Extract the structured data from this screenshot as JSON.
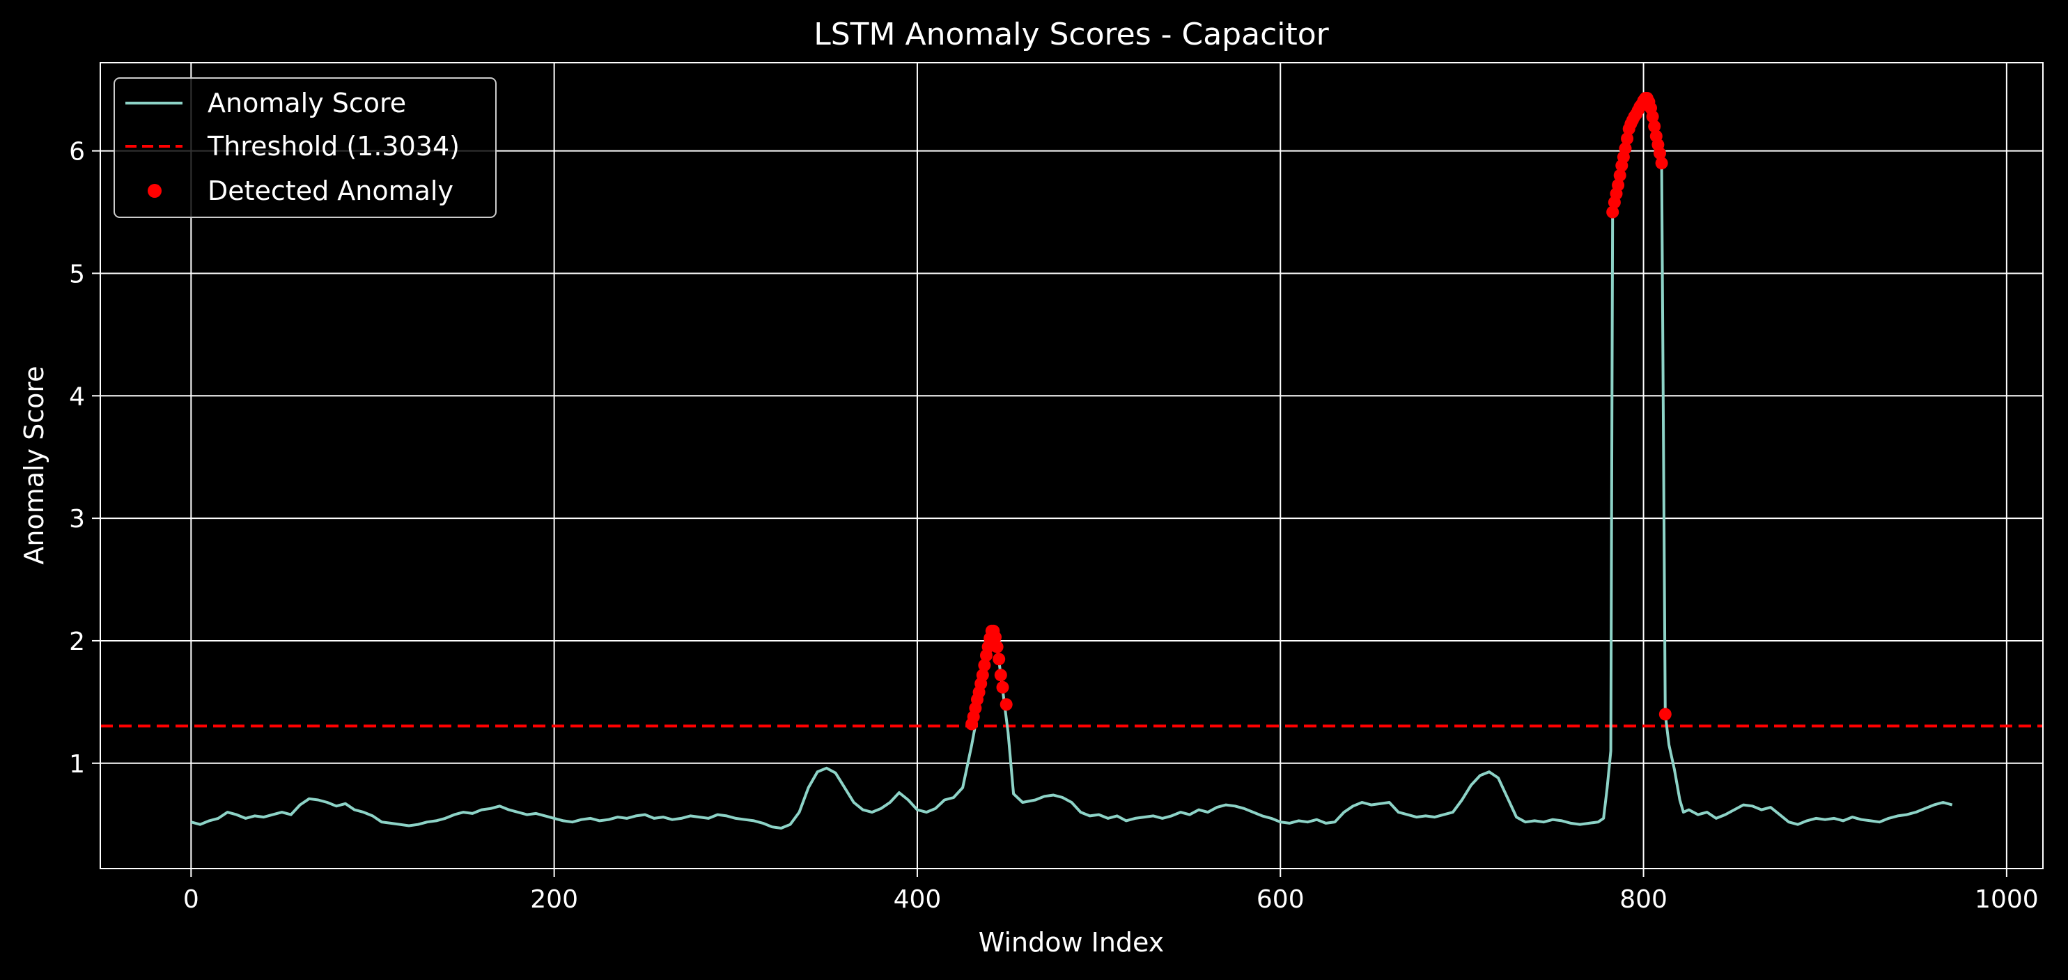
{
  "chart_data": {
    "type": "line",
    "title": "LSTM Anomaly Scores - Capacitor",
    "xlabel": "Window Index",
    "ylabel": "Anomaly Score",
    "xlim": [
      -50,
      1020
    ],
    "ylim": [
      0.14,
      6.72
    ],
    "xticks": [
      0,
      200,
      400,
      600,
      800,
      1000
    ],
    "yticks": [
      1,
      2,
      3,
      4,
      5,
      6
    ],
    "grid": true,
    "legend_position": "top-left",
    "colors": {
      "background": "#000000",
      "score_line": "#8dd3c7",
      "threshold": "#ff0000",
      "anomaly_points": "#ff0000",
      "grid": "#ffffff",
      "axes": "#ffffff"
    },
    "threshold": {
      "name": "Threshold (1.3034)",
      "value": 1.3034,
      "style": "dashed"
    },
    "series": [
      {
        "name": "Anomaly Score",
        "type": "line",
        "points": [
          [
            0,
            0.52
          ],
          [
            5,
            0.5
          ],
          [
            10,
            0.53
          ],
          [
            15,
            0.55
          ],
          [
            20,
            0.6
          ],
          [
            25,
            0.58
          ],
          [
            30,
            0.55
          ],
          [
            35,
            0.57
          ],
          [
            40,
            0.56
          ],
          [
            45,
            0.58
          ],
          [
            50,
            0.6
          ],
          [
            55,
            0.58
          ],
          [
            60,
            0.66
          ],
          [
            65,
            0.71
          ],
          [
            70,
            0.7
          ],
          [
            75,
            0.68
          ],
          [
            80,
            0.65
          ],
          [
            85,
            0.67
          ],
          [
            90,
            0.62
          ],
          [
            95,
            0.6
          ],
          [
            100,
            0.57
          ],
          [
            105,
            0.52
          ],
          [
            110,
            0.51
          ],
          [
            115,
            0.5
          ],
          [
            120,
            0.49
          ],
          [
            125,
            0.5
          ],
          [
            130,
            0.52
          ],
          [
            135,
            0.53
          ],
          [
            140,
            0.55
          ],
          [
            145,
            0.58
          ],
          [
            150,
            0.6
          ],
          [
            155,
            0.59
          ],
          [
            160,
            0.62
          ],
          [
            165,
            0.63
          ],
          [
            170,
            0.65
          ],
          [
            175,
            0.62
          ],
          [
            180,
            0.6
          ],
          [
            185,
            0.58
          ],
          [
            190,
            0.59
          ],
          [
            195,
            0.57
          ],
          [
            200,
            0.55
          ],
          [
            205,
            0.53
          ],
          [
            210,
            0.52
          ],
          [
            215,
            0.54
          ],
          [
            220,
            0.55
          ],
          [
            225,
            0.53
          ],
          [
            230,
            0.54
          ],
          [
            235,
            0.56
          ],
          [
            240,
            0.55
          ],
          [
            245,
            0.57
          ],
          [
            250,
            0.58
          ],
          [
            255,
            0.55
          ],
          [
            260,
            0.56
          ],
          [
            265,
            0.54
          ],
          [
            270,
            0.55
          ],
          [
            275,
            0.57
          ],
          [
            280,
            0.56
          ],
          [
            285,
            0.55
          ],
          [
            290,
            0.58
          ],
          [
            295,
            0.57
          ],
          [
            300,
            0.55
          ],
          [
            305,
            0.54
          ],
          [
            310,
            0.53
          ],
          [
            315,
            0.51
          ],
          [
            320,
            0.48
          ],
          [
            325,
            0.47
          ],
          [
            330,
            0.5
          ],
          [
            335,
            0.6
          ],
          [
            340,
            0.8
          ],
          [
            345,
            0.93
          ],
          [
            350,
            0.96
          ],
          [
            355,
            0.92
          ],
          [
            360,
            0.8
          ],
          [
            365,
            0.68
          ],
          [
            370,
            0.62
          ],
          [
            375,
            0.6
          ],
          [
            380,
            0.63
          ],
          [
            385,
            0.68
          ],
          [
            390,
            0.76
          ],
          [
            395,
            0.7
          ],
          [
            400,
            0.62
          ],
          [
            405,
            0.6
          ],
          [
            410,
            0.63
          ],
          [
            415,
            0.7
          ],
          [
            420,
            0.72
          ],
          [
            425,
            0.8
          ],
          [
            430,
            1.15
          ],
          [
            435,
            1.55
          ],
          [
            438,
            1.85
          ],
          [
            441,
            2.08
          ],
          [
            444,
            1.95
          ],
          [
            447,
            1.6
          ],
          [
            450,
            1.25
          ],
          [
            453,
            0.75
          ],
          [
            458,
            0.68
          ],
          [
            465,
            0.7
          ],
          [
            470,
            0.73
          ],
          [
            475,
            0.74
          ],
          [
            480,
            0.72
          ],
          [
            485,
            0.68
          ],
          [
            490,
            0.6
          ],
          [
            495,
            0.57
          ],
          [
            500,
            0.58
          ],
          [
            505,
            0.55
          ],
          [
            510,
            0.57
          ],
          [
            515,
            0.53
          ],
          [
            520,
            0.55
          ],
          [
            525,
            0.56
          ],
          [
            530,
            0.57
          ],
          [
            535,
            0.55
          ],
          [
            540,
            0.57
          ],
          [
            545,
            0.6
          ],
          [
            550,
            0.58
          ],
          [
            555,
            0.62
          ],
          [
            560,
            0.6
          ],
          [
            565,
            0.64
          ],
          [
            570,
            0.66
          ],
          [
            575,
            0.65
          ],
          [
            580,
            0.63
          ],
          [
            585,
            0.6
          ],
          [
            590,
            0.57
          ],
          [
            595,
            0.55
          ],
          [
            600,
            0.52
          ],
          [
            605,
            0.51
          ],
          [
            610,
            0.53
          ],
          [
            615,
            0.52
          ],
          [
            620,
            0.54
          ],
          [
            625,
            0.51
          ],
          [
            630,
            0.52
          ],
          [
            635,
            0.6
          ],
          [
            640,
            0.65
          ],
          [
            645,
            0.68
          ],
          [
            650,
            0.66
          ],
          [
            655,
            0.67
          ],
          [
            660,
            0.68
          ],
          [
            665,
            0.6
          ],
          [
            670,
            0.58
          ],
          [
            675,
            0.56
          ],
          [
            680,
            0.57
          ],
          [
            685,
            0.56
          ],
          [
            690,
            0.58
          ],
          [
            695,
            0.6
          ],
          [
            700,
            0.7
          ],
          [
            705,
            0.82
          ],
          [
            710,
            0.9
          ],
          [
            715,
            0.93
          ],
          [
            720,
            0.88
          ],
          [
            725,
            0.72
          ],
          [
            730,
            0.56
          ],
          [
            735,
            0.52
          ],
          [
            740,
            0.53
          ],
          [
            745,
            0.52
          ],
          [
            750,
            0.54
          ],
          [
            755,
            0.53
          ],
          [
            760,
            0.51
          ],
          [
            765,
            0.5
          ],
          [
            770,
            0.51
          ],
          [
            775,
            0.52
          ],
          [
            778,
            0.55
          ],
          [
            780,
            0.8
          ],
          [
            782,
            1.1
          ],
          [
            783,
            5.5
          ],
          [
            786,
            5.7
          ],
          [
            789,
            5.95
          ],
          [
            792,
            6.2
          ],
          [
            795,
            6.3
          ],
          [
            798,
            6.38
          ],
          [
            801,
            6.43
          ],
          [
            804,
            6.35
          ],
          [
            807,
            6.1
          ],
          [
            810,
            5.9
          ],
          [
            812,
            1.4
          ],
          [
            814,
            1.15
          ],
          [
            817,
            0.95
          ],
          [
            820,
            0.7
          ],
          [
            822,
            0.6
          ],
          [
            825,
            0.62
          ],
          [
            830,
            0.58
          ],
          [
            835,
            0.6
          ],
          [
            840,
            0.55
          ],
          [
            845,
            0.58
          ],
          [
            850,
            0.62
          ],
          [
            855,
            0.66
          ],
          [
            860,
            0.65
          ],
          [
            865,
            0.62
          ],
          [
            870,
            0.64
          ],
          [
            875,
            0.58
          ],
          [
            880,
            0.52
          ],
          [
            885,
            0.5
          ],
          [
            890,
            0.53
          ],
          [
            895,
            0.55
          ],
          [
            900,
            0.54
          ],
          [
            905,
            0.55
          ],
          [
            910,
            0.53
          ],
          [
            915,
            0.56
          ],
          [
            920,
            0.54
          ],
          [
            925,
            0.53
          ],
          [
            930,
            0.52
          ],
          [
            935,
            0.55
          ],
          [
            940,
            0.57
          ],
          [
            945,
            0.58
          ],
          [
            950,
            0.6
          ],
          [
            955,
            0.63
          ],
          [
            960,
            0.66
          ],
          [
            965,
            0.68
          ],
          [
            970,
            0.66
          ]
        ]
      },
      {
        "name": "Detected Anomaly",
        "type": "scatter",
        "points": [
          [
            430,
            1.32
          ],
          [
            431,
            1.38
          ],
          [
            432,
            1.45
          ],
          [
            433,
            1.52
          ],
          [
            434,
            1.58
          ],
          [
            435,
            1.65
          ],
          [
            436,
            1.72
          ],
          [
            437,
            1.8
          ],
          [
            438,
            1.88
          ],
          [
            439,
            1.95
          ],
          [
            440,
            2.02
          ],
          [
            441,
            2.08
          ],
          [
            442,
            2.08
          ],
          [
            443,
            2.03
          ],
          [
            444,
            1.95
          ],
          [
            445,
            1.85
          ],
          [
            446,
            1.72
          ],
          [
            447,
            1.62
          ],
          [
            449,
            1.48
          ],
          [
            783,
            5.5
          ],
          [
            784,
            5.58
          ],
          [
            785,
            5.65
          ],
          [
            786,
            5.72
          ],
          [
            787,
            5.8
          ],
          [
            788,
            5.88
          ],
          [
            789,
            5.95
          ],
          [
            790,
            6.02
          ],
          [
            791,
            6.1
          ],
          [
            792,
            6.18
          ],
          [
            793,
            6.22
          ],
          [
            794,
            6.25
          ],
          [
            795,
            6.28
          ],
          [
            796,
            6.3
          ],
          [
            797,
            6.33
          ],
          [
            798,
            6.36
          ],
          [
            799,
            6.38
          ],
          [
            800,
            6.41
          ],
          [
            801,
            6.43
          ],
          [
            802,
            6.43
          ],
          [
            803,
            6.4
          ],
          [
            804,
            6.35
          ],
          [
            805,
            6.28
          ],
          [
            806,
            6.2
          ],
          [
            807,
            6.12
          ],
          [
            808,
            6.05
          ],
          [
            809,
            5.98
          ],
          [
            810,
            5.9
          ],
          [
            812,
            1.4
          ]
        ]
      }
    ]
  }
}
